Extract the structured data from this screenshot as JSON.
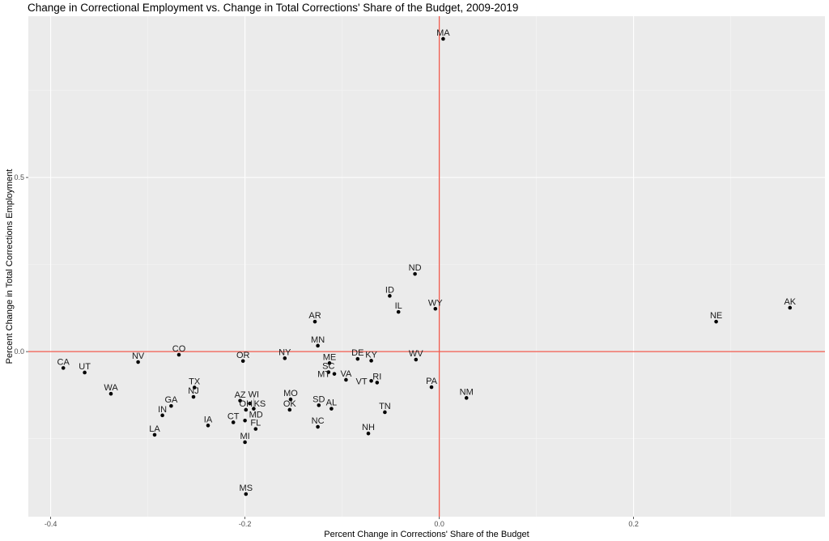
{
  "chart_data": {
    "type": "scatter",
    "title": "Change in Correctional Employment vs. Change in Total Corrections' Share of the Budget, 2009-2019",
    "xlabel": "Percent Change in Corrections' Share of the Budget",
    "ylabel": "Percent Change in Total Corrections Employment",
    "xlim": [
      -0.423,
      0.397
    ],
    "ylim": [
      -0.474,
      0.963
    ],
    "xticks": [
      -0.4,
      -0.2,
      0.0,
      0.2
    ],
    "xtick_labels": [
      "-0.4",
      "-0.2",
      "0.0",
      "0.2"
    ],
    "yticks": [
      0.0,
      0.5
    ],
    "ytick_labels": [
      "0.0",
      "0.5"
    ],
    "grid": true,
    "reference_lines": {
      "x": 0,
      "y": 0,
      "color": "#f0594c"
    },
    "background": "#ebebeb",
    "points": [
      {
        "label": "CA",
        "x": -0.387,
        "y": -0.047
      },
      {
        "label": "UT",
        "x": -0.365,
        "y": -0.06
      },
      {
        "label": "NV",
        "x": -0.31,
        "y": -0.03
      },
      {
        "label": "CO",
        "x": -0.268,
        "y": -0.009
      },
      {
        "label": "WA",
        "x": -0.338,
        "y": -0.121
      },
      {
        "label": "MS",
        "x": -0.199,
        "y": -0.409
      },
      {
        "label": "AR",
        "x": -0.128,
        "y": 0.086
      },
      {
        "label": "ID",
        "x": -0.051,
        "y": 0.16
      },
      {
        "label": "IL",
        "x": -0.042,
        "y": 0.114
      },
      {
        "label": "ND",
        "x": -0.025,
        "y": 0.223
      },
      {
        "label": "WY",
        "x": -0.004,
        "y": 0.123
      },
      {
        "label": "WV",
        "x": -0.024,
        "y": -0.023
      },
      {
        "label": "PA",
        "x": -0.008,
        "y": -0.102
      },
      {
        "label": "NM",
        "x": 0.028,
        "y": -0.133
      },
      {
        "label": "NE",
        "x": 0.285,
        "y": 0.086
      },
      {
        "label": "AK",
        "x": 0.361,
        "y": 0.126
      },
      {
        "label": "MA",
        "x": 0.004,
        "y": 0.898
      },
      {
        "label": "OR",
        "x": -0.202,
        "y": -0.027
      },
      {
        "label": "NY",
        "x": -0.159,
        "y": -0.019
      },
      {
        "label": "MN",
        "x": -0.125,
        "y": 0.017
      },
      {
        "label": "ME",
        "x": -0.113,
        "y": -0.033
      },
      {
        "label": "SC",
        "x": -0.114,
        "y": -0.059
      },
      {
        "label": "MT",
        "x": -0.108,
        "y": -0.064
      },
      {
        "label": "VA",
        "x": -0.096,
        "y": -0.081
      },
      {
        "label": "DE",
        "x": -0.084,
        "y": -0.021
      },
      {
        "label": "KY",
        "x": -0.07,
        "y": -0.026
      },
      {
        "label": "VT",
        "x": -0.07,
        "y": -0.084
      },
      {
        "label": "RI",
        "x": -0.064,
        "y": -0.089
      },
      {
        "label": "AZ",
        "x": -0.205,
        "y": -0.141
      },
      {
        "label": "KS",
        "x": -0.195,
        "y": -0.149
      },
      {
        "label": "OH",
        "x": -0.199,
        "y": -0.167
      },
      {
        "label": "WI",
        "x": -0.191,
        "y": -0.164
      },
      {
        "label": "MD",
        "x": -0.2,
        "y": -0.198
      },
      {
        "label": "CT",
        "x": -0.212,
        "y": -0.203
      },
      {
        "label": "FL",
        "x": -0.189,
        "y": -0.222
      },
      {
        "label": "MI",
        "x": -0.2,
        "y": -0.26
      },
      {
        "label": "MO",
        "x": -0.153,
        "y": -0.137
      },
      {
        "label": "OK",
        "x": -0.154,
        "y": -0.167
      },
      {
        "label": "SD",
        "x": -0.124,
        "y": -0.154
      },
      {
        "label": "AL",
        "x": -0.111,
        "y": -0.164
      },
      {
        "label": "NC",
        "x": -0.125,
        "y": -0.216
      },
      {
        "label": "TN",
        "x": -0.056,
        "y": -0.174
      },
      {
        "label": "NH",
        "x": -0.073,
        "y": -0.235
      },
      {
        "label": "TX",
        "x": -0.252,
        "y": -0.103
      },
      {
        "label": "NJ",
        "x": -0.253,
        "y": -0.13
      },
      {
        "label": "GA",
        "x": -0.276,
        "y": -0.156
      },
      {
        "label": "IN",
        "x": -0.285,
        "y": -0.183
      },
      {
        "label": "LA",
        "x": -0.293,
        "y": -0.239
      },
      {
        "label": "IA",
        "x": -0.238,
        "y": -0.212
      }
    ]
  }
}
